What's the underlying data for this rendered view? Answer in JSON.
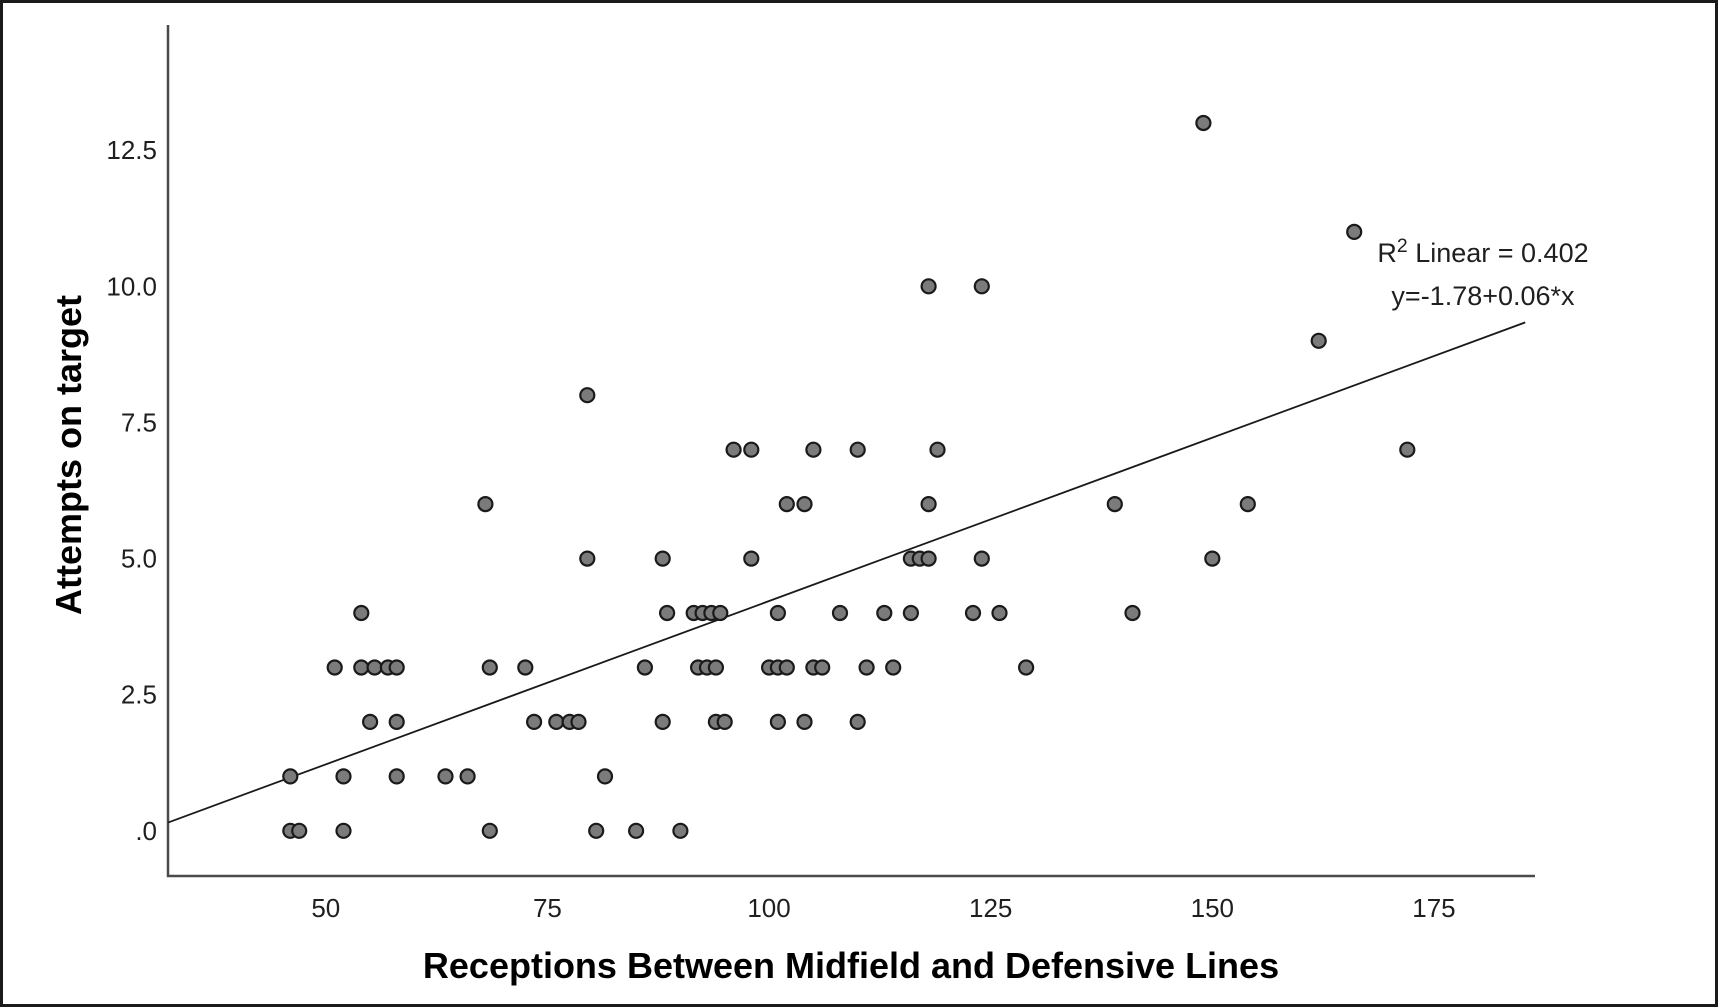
{
  "chart_data": {
    "type": "scatter",
    "title": "",
    "xlabel": "Receptions Between Midfield and Defensive Lines",
    "ylabel": "Attempts on target",
    "x_axis": {
      "label": "Receptions Between Midfield and Defensive Lines",
      "ticks": [
        "50",
        "75",
        "100",
        "125",
        "150",
        "175"
      ],
      "tick_values": [
        50,
        75,
        100,
        125,
        150,
        175
      ],
      "range": [
        32.2,
        186.4
      ],
      "grid": false
    },
    "y_axis": {
      "label": "Attempts on target",
      "ticks": [
        ".0",
        "2.5",
        "5.0",
        "7.5",
        "10.0",
        "12.5"
      ],
      "tick_values": [
        0,
        2.5,
        5,
        7.5,
        10,
        12.5
      ],
      "range": [
        -0.83,
        14.8
      ],
      "grid": false
    },
    "annotation": {
      "r2_base": "R",
      "r2_exp": "2",
      "r2_tail": " Linear = 0.402",
      "r2_value": 0.402,
      "equation": "y=-1.78+0.06*x"
    },
    "regression": {
      "slope": 0.06,
      "intercept": -1.78,
      "x_start": 32.2,
      "x_end": 185.3
    },
    "points": [
      [
        46,
        0
      ],
      [
        47,
        0
      ],
      [
        52,
        0
      ],
      [
        68.5,
        0
      ],
      [
        80.5,
        0
      ],
      [
        85,
        0
      ],
      [
        90,
        0
      ],
      [
        46,
        1
      ],
      [
        52,
        1
      ],
      [
        58,
        1
      ],
      [
        63.5,
        1
      ],
      [
        66,
        1
      ],
      [
        81.5,
        1
      ],
      [
        55,
        2
      ],
      [
        58,
        2
      ],
      [
        73.5,
        2
      ],
      [
        76,
        2
      ],
      [
        77.5,
        2
      ],
      [
        78.5,
        2
      ],
      [
        88,
        2
      ],
      [
        94,
        2
      ],
      [
        95,
        2
      ],
      [
        101,
        2
      ],
      [
        104,
        2
      ],
      [
        110,
        2
      ],
      [
        51,
        3
      ],
      [
        54,
        3
      ],
      [
        55.5,
        3
      ],
      [
        57,
        3
      ],
      [
        58,
        3
      ],
      [
        68.5,
        3
      ],
      [
        72.5,
        3
      ],
      [
        86,
        3
      ],
      [
        92,
        3
      ],
      [
        93,
        3
      ],
      [
        94,
        3
      ],
      [
        100,
        3
      ],
      [
        101,
        3
      ],
      [
        102,
        3
      ],
      [
        105,
        3
      ],
      [
        106,
        3
      ],
      [
        111,
        3
      ],
      [
        114,
        3
      ],
      [
        129,
        3
      ],
      [
        54,
        4
      ],
      [
        88.5,
        4
      ],
      [
        91.5,
        4
      ],
      [
        92.5,
        4
      ],
      [
        93.5,
        4
      ],
      [
        94.5,
        4
      ],
      [
        101,
        4
      ],
      [
        108,
        4
      ],
      [
        113,
        4
      ],
      [
        116,
        4
      ],
      [
        123,
        4
      ],
      [
        126,
        4
      ],
      [
        141,
        4
      ],
      [
        79.5,
        5
      ],
      [
        88,
        5
      ],
      [
        98,
        5
      ],
      [
        116,
        5
      ],
      [
        117,
        5
      ],
      [
        118,
        5
      ],
      [
        124,
        5
      ],
      [
        150,
        5
      ],
      [
        68,
        6
      ],
      [
        102,
        6
      ],
      [
        104,
        6
      ],
      [
        118,
        6
      ],
      [
        139,
        6
      ],
      [
        154,
        6
      ],
      [
        96,
        7
      ],
      [
        98,
        7
      ],
      [
        105,
        7
      ],
      [
        110,
        7
      ],
      [
        119,
        7
      ],
      [
        172,
        7
      ],
      [
        79.5,
        8
      ],
      [
        162,
        9
      ],
      [
        118,
        10
      ],
      [
        124,
        10
      ],
      [
        166,
        11
      ],
      [
        149,
        13
      ]
    ],
    "legend": null,
    "colors": {
      "marker_fill": "#7b7b7b",
      "marker_stroke": "#1a1a1a",
      "axis_line": "#4a4a4a",
      "regression_line": "#1a1a1a",
      "tick_text": "#1f1f1f",
      "background": "#ffffff",
      "figure_border": "#1a1a1a"
    }
  }
}
